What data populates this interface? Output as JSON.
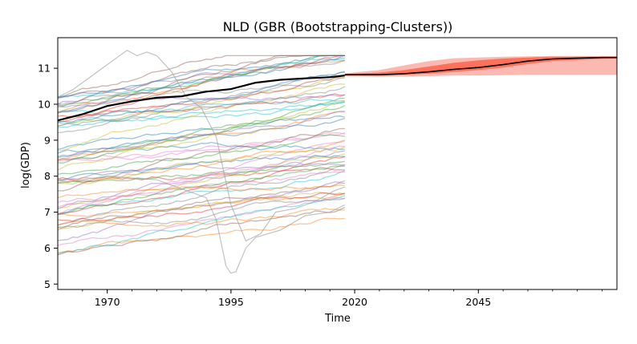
{
  "chart_data": {
    "type": "line",
    "title": "NLD (GBR (Bootstrapping-Clusters))",
    "xlabel": "Time",
    "ylabel": "log(GDP)",
    "xlim": [
      1960,
      2073
    ],
    "ylim": [
      4.85,
      11.85
    ],
    "x_ticks": [
      1970,
      1995,
      2020,
      2045
    ],
    "x_tick_labels": [
      "1970",
      "1995",
      "2020",
      "2045"
    ],
    "y_ticks": [
      5,
      6,
      7,
      8,
      9,
      10,
      11
    ],
    "y_tick_labels": [
      "5",
      "6",
      "7",
      "8",
      "9",
      "10",
      "11"
    ],
    "grid": false,
    "legend": "none",
    "background_series": {
      "description_visible": "many thin colored country trajectories",
      "x_start": 1960,
      "x_end": 2018,
      "count": 62,
      "start_range": [
        5.8,
        10.3
      ],
      "end_range": [
        6.5,
        11.3
      ],
      "alpha": 0.45
    },
    "highlight_series": {
      "color": "#000000",
      "x": [
        1960,
        1965,
        1970,
        1975,
        1980,
        1985,
        1990,
        1995,
        2000,
        2005,
        2010,
        2015,
        2018
      ],
      "y": [
        9.55,
        9.72,
        9.95,
        10.08,
        10.18,
        10.22,
        10.35,
        10.42,
        10.6,
        10.68,
        10.72,
        10.75,
        10.8
      ]
    },
    "forecast": {
      "color": "#000000",
      "band_color": "#fa8072",
      "inner_band_color": "#ff5a3c",
      "x": [
        2018,
        2025,
        2030,
        2035,
        2040,
        2045,
        2050,
        2055,
        2060,
        2065,
        2070,
        2073
      ],
      "median": [
        10.82,
        10.82,
        10.85,
        10.9,
        10.97,
        11.02,
        11.1,
        11.2,
        11.26,
        11.28,
        11.3,
        11.3
      ],
      "outer_lower": [
        10.78,
        10.76,
        10.77,
        10.78,
        10.8,
        10.8,
        10.81,
        10.82,
        10.82,
        10.82,
        10.82,
        10.82
      ],
      "outer_upper": [
        10.86,
        10.95,
        11.08,
        11.2,
        11.28,
        11.3,
        11.32,
        11.33,
        11.34,
        11.34,
        11.34,
        11.34
      ],
      "inner_lower": [
        10.8,
        10.8,
        10.82,
        10.85,
        10.9,
        10.95,
        11.02,
        11.12,
        11.2,
        11.23,
        11.26,
        11.27
      ],
      "inner_upper": [
        10.84,
        10.88,
        10.95,
        11.05,
        11.15,
        11.22,
        11.27,
        11.3,
        11.32,
        11.32,
        11.32,
        11.32
      ]
    },
    "special_series": [
      {
        "name": "",
        "color": "#999999",
        "x": [
          1960,
          1963,
          1966,
          1969,
          1972,
          1974,
          1976,
          1978,
          1980,
          1983,
          1986,
          1989,
          1992,
          1995,
          1998,
          2001,
          2004,
          2008,
          2012,
          2016,
          2018
        ],
        "y": [
          10.2,
          10.4,
          10.7,
          11.0,
          11.3,
          11.5,
          11.35,
          11.45,
          11.35,
          10.9,
          10.2,
          9.9,
          9.1,
          7.2,
          6.2,
          6.4,
          7.0,
          7.1,
          7.3,
          7.6,
          7.7
        ]
      },
      {
        "name": "",
        "color": "#999999",
        "x": [
          1960,
          1970,
          1980,
          1990,
          1992,
          1994,
          1995,
          1996,
          1998,
          2000,
          2005,
          2010,
          2015,
          2018
        ],
        "y": [
          7.8,
          8.0,
          7.9,
          7.4,
          6.8,
          5.5,
          5.3,
          5.35,
          6.0,
          6.3,
          6.5,
          6.9,
          7.0,
          7.2
        ]
      }
    ]
  }
}
